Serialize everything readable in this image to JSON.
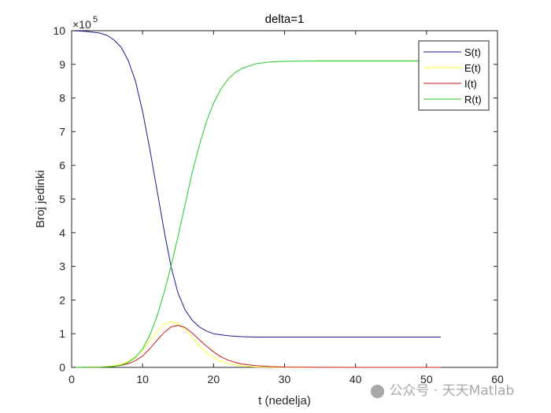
{
  "watermark": {
    "text": "公众号 · 天天Matlab",
    "icon": "wechat-icon"
  },
  "chart_data": {
    "type": "line",
    "title": "delta=1",
    "xlabel": "t (nedelja)",
    "ylabel": "Broj jedinki",
    "xlim": [
      0,
      60
    ],
    "ylim": [
      0,
      10
    ],
    "y_exponent_label": "×10",
    "y_exponent_power": "5",
    "xticks": [
      "0",
      "10",
      "20",
      "30",
      "40",
      "50",
      "60"
    ],
    "yticks": [
      "0",
      "1",
      "2",
      "3",
      "4",
      "5",
      "6",
      "7",
      "8",
      "9",
      "10"
    ],
    "grid": false,
    "legend_position": "top-right",
    "x_units_note": "",
    "series": [
      {
        "name": "S(t)",
        "color": "#1a1a8c",
        "x": [
          0,
          2,
          4,
          5,
          6,
          7,
          8,
          9,
          10,
          11,
          12,
          13,
          14,
          15,
          16,
          17,
          18,
          19,
          20,
          22,
          24,
          26,
          28,
          30,
          35,
          40,
          45,
          50,
          52
        ],
        "values": [
          10.0,
          9.98,
          9.93,
          9.86,
          9.72,
          9.5,
          9.1,
          8.5,
          7.6,
          6.5,
          5.3,
          4.1,
          3.0,
          2.2,
          1.7,
          1.4,
          1.2,
          1.08,
          1.0,
          0.94,
          0.91,
          0.9,
          0.9,
          0.9,
          0.9,
          0.9,
          0.9,
          0.9,
          0.9
        ]
      },
      {
        "name": "E(t)",
        "color": "#ffff33",
        "x": [
          0,
          4,
          6,
          7,
          8,
          9,
          10,
          11,
          12,
          13,
          14,
          15,
          16,
          17,
          18,
          19,
          20,
          21,
          22,
          24,
          26,
          28,
          30,
          35,
          40,
          45,
          50,
          52
        ],
        "values": [
          0,
          0.01,
          0.05,
          0.1,
          0.18,
          0.32,
          0.52,
          0.78,
          1.05,
          1.27,
          1.36,
          1.3,
          1.12,
          0.88,
          0.64,
          0.44,
          0.29,
          0.18,
          0.11,
          0.04,
          0.01,
          0.005,
          0,
          0,
          0,
          0,
          0,
          0
        ]
      },
      {
        "name": "I(t)",
        "color": "#cc1a1a",
        "x": [
          0,
          4,
          6,
          7,
          8,
          9,
          10,
          11,
          12,
          13,
          14,
          15,
          16,
          17,
          18,
          19,
          20,
          21,
          22,
          23,
          24,
          26,
          28,
          30,
          35,
          40,
          45,
          50,
          52
        ],
        "values": [
          0,
          0.005,
          0.03,
          0.06,
          0.11,
          0.2,
          0.34,
          0.55,
          0.8,
          1.03,
          1.2,
          1.25,
          1.18,
          1.02,
          0.82,
          0.63,
          0.46,
          0.32,
          0.22,
          0.15,
          0.1,
          0.05,
          0.025,
          0.01,
          0.003,
          0.001,
          0,
          0,
          0
        ]
      },
      {
        "name": "R(t)",
        "color": "#22cc22",
        "x": [
          0,
          4,
          6,
          7,
          8,
          9,
          10,
          11,
          12,
          13,
          14,
          15,
          16,
          17,
          18,
          19,
          20,
          21,
          22,
          23,
          24,
          26,
          28,
          30,
          35,
          40,
          45,
          50,
          52
        ],
        "values": [
          0,
          0.005,
          0.03,
          0.07,
          0.15,
          0.3,
          0.55,
          0.95,
          1.5,
          2.2,
          3.0,
          3.9,
          4.85,
          5.8,
          6.6,
          7.3,
          7.85,
          8.25,
          8.55,
          8.75,
          8.88,
          9.02,
          9.07,
          9.09,
          9.1,
          9.1,
          9.1,
          9.1,
          9.1
        ]
      }
    ]
  }
}
